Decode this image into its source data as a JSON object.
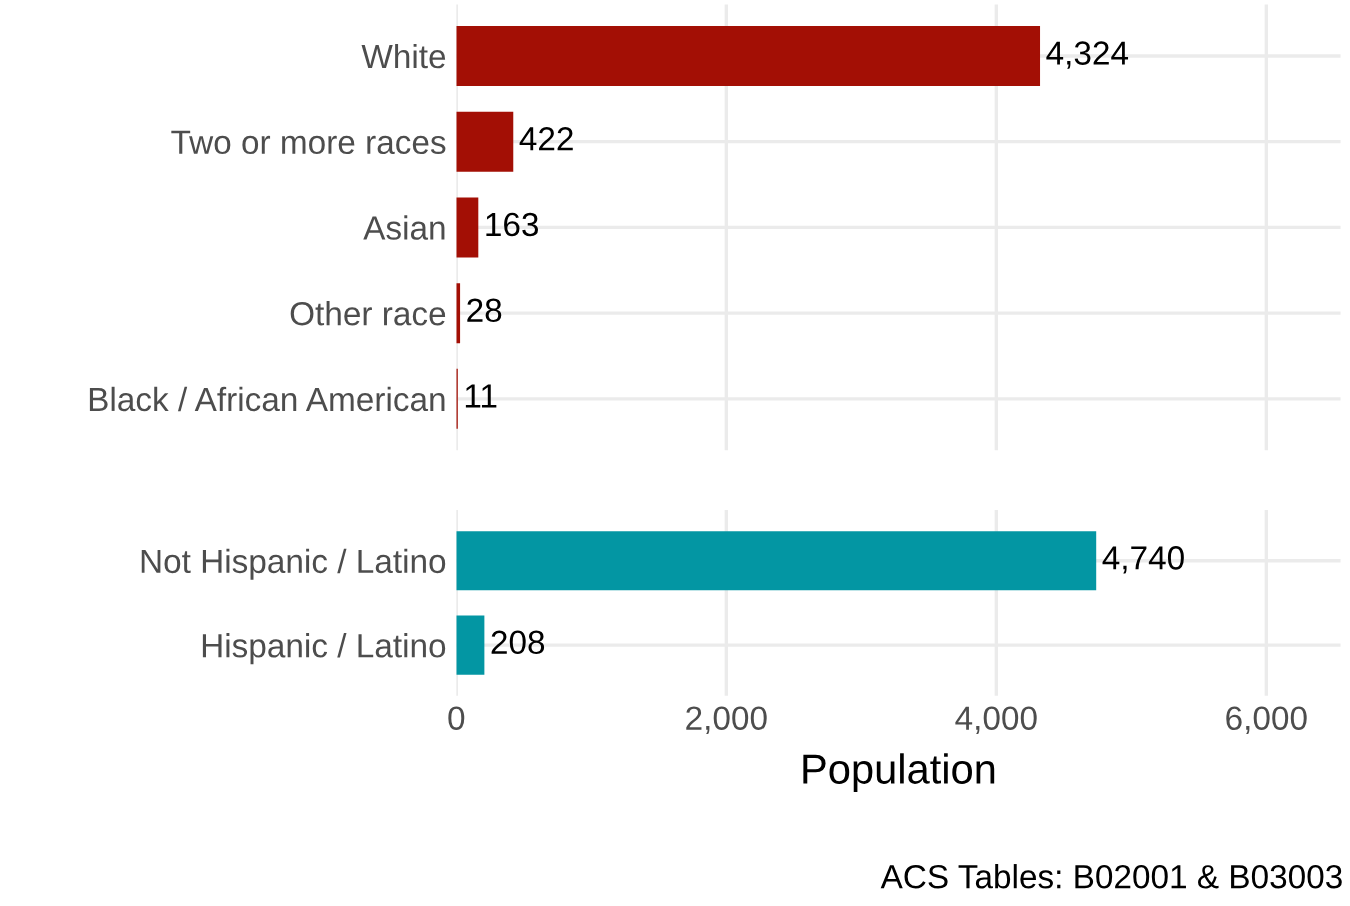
{
  "chart_data": [
    {
      "type": "bar",
      "orientation": "horizontal",
      "categories": [
        "White",
        "Two or more races",
        "Asian",
        "Other race",
        "Black / African American"
      ],
      "values": [
        4324,
        422,
        163,
        28,
        11
      ],
      "value_labels": [
        "4,324",
        "422",
        "163",
        "28",
        "11"
      ],
      "color": "#a30f05",
      "xlim": [
        0,
        6550
      ],
      "xticks": [
        {
          "value": 0,
          "label": null
        },
        {
          "value": 2000,
          "label": null
        },
        {
          "value": 4000,
          "label": null
        },
        {
          "value": 6000,
          "label": null
        }
      ],
      "grid": true,
      "tick_labels": "y"
    },
    {
      "type": "bar",
      "orientation": "horizontal",
      "categories": [
        "Not Hispanic / Latino",
        "Hispanic / Latino"
      ],
      "values": [
        4740,
        208
      ],
      "value_labels": [
        "4,740",
        "208"
      ],
      "color": "#0396a3",
      "xlim": [
        0,
        6550
      ],
      "xticks": [
        {
          "value": 0,
          "label": "0"
        },
        {
          "value": 2000,
          "label": "2,000"
        },
        {
          "value": 4000,
          "label": "4,000"
        },
        {
          "value": 6000,
          "label": "6,000"
        }
      ],
      "grid": true,
      "xlabel": "Population",
      "annotations": [
        "ACS Tables: B02001 & B03003"
      ]
    }
  ]
}
